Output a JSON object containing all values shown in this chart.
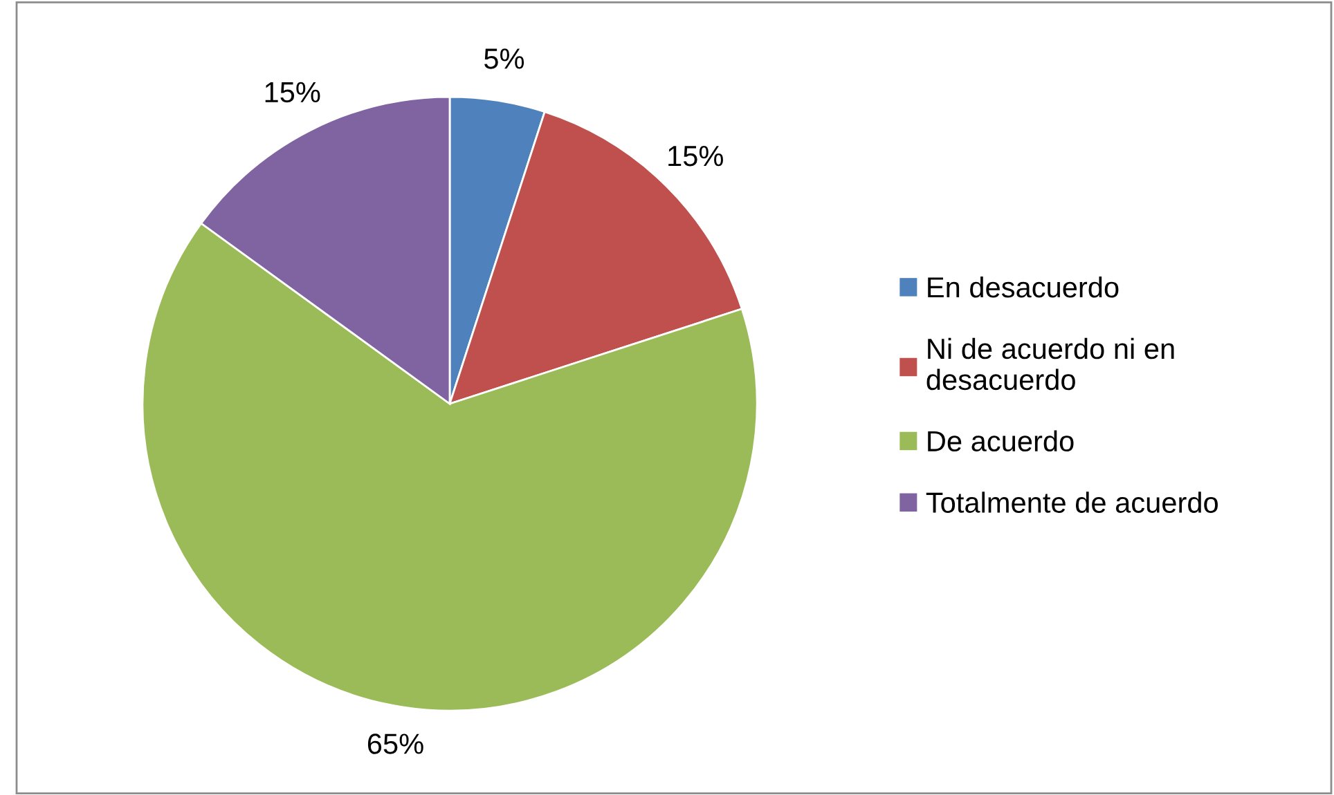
{
  "chart_data": {
    "type": "pie",
    "categories": [
      "En desacuerdo",
      "Ni de acuerdo ni en desacuerdo",
      "De acuerdo",
      "Totalmente de acuerdo"
    ],
    "values": [
      5,
      15,
      65,
      15
    ],
    "colors": [
      "#4f81bd",
      "#c0504d",
      "#9bbb59",
      "#8064a2"
    ],
    "value_labels": [
      "5%",
      "15%",
      "65%",
      "15%"
    ],
    "legend": "right"
  }
}
